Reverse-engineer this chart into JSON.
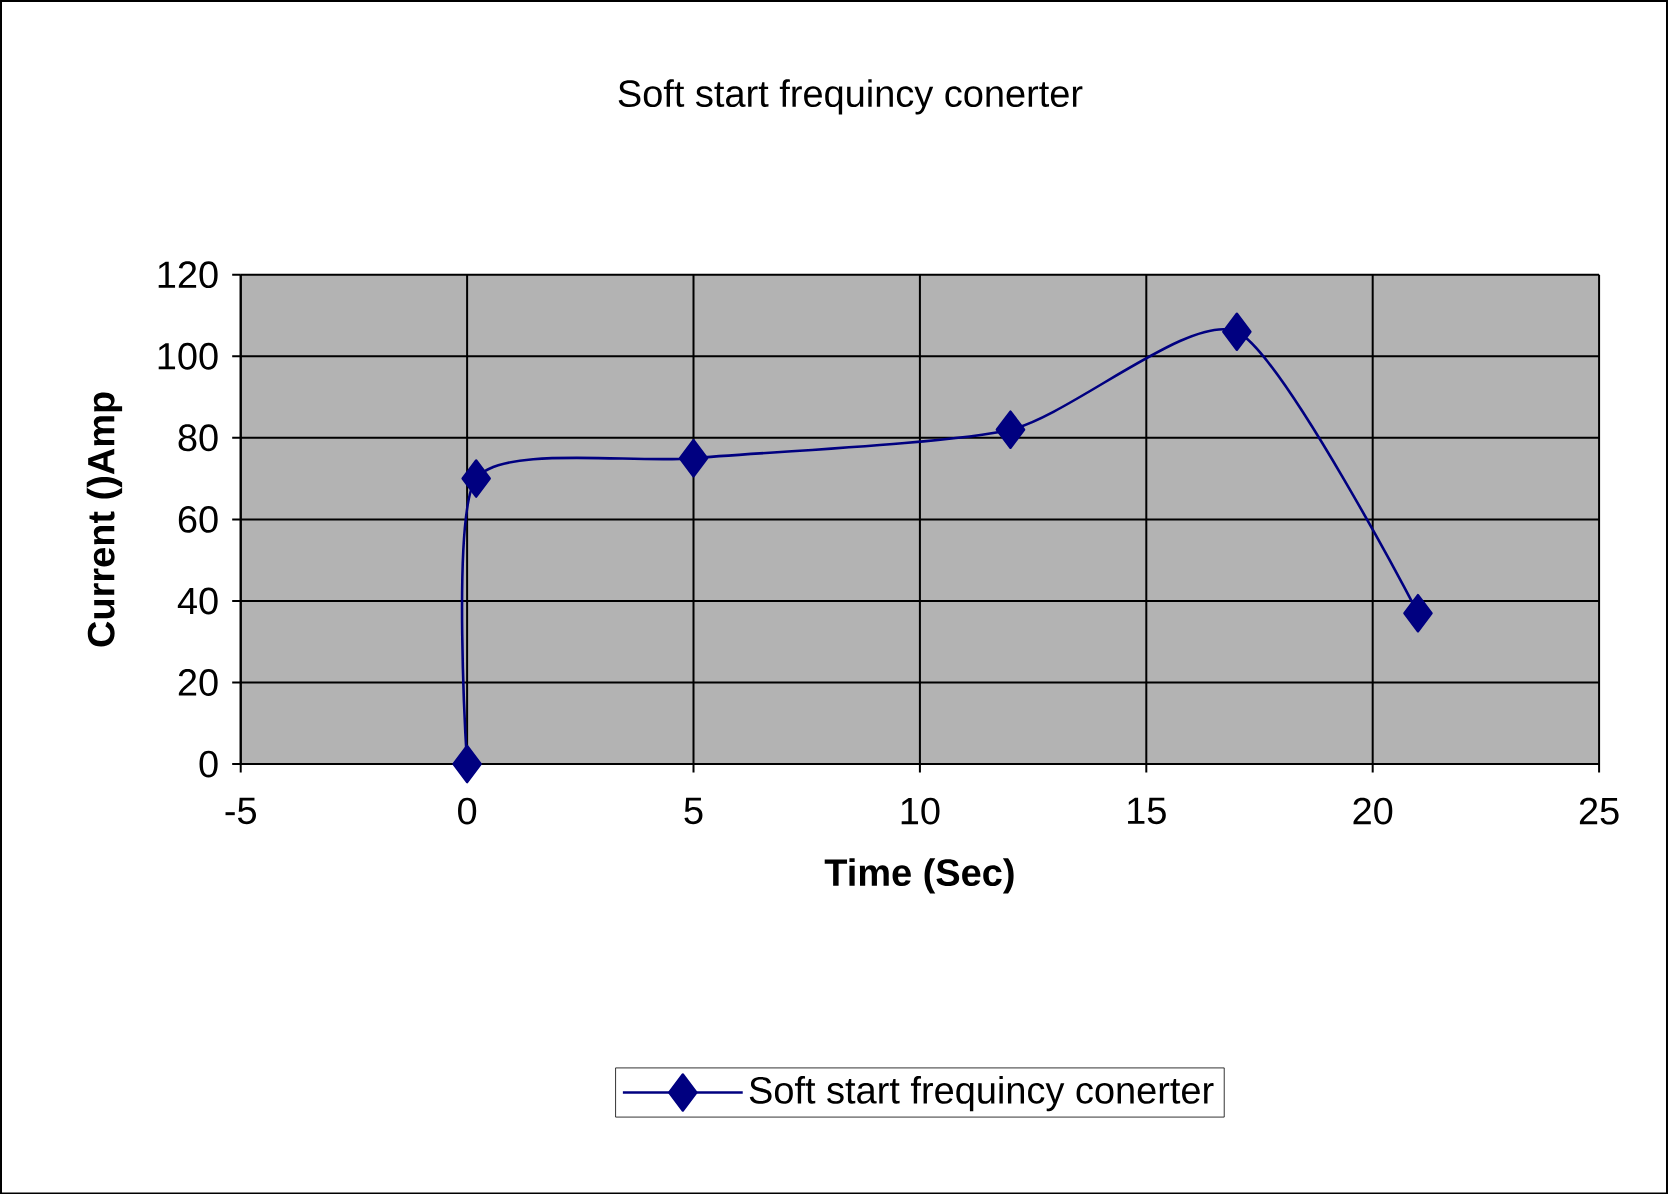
{
  "chart_data": {
    "type": "line",
    "title": "Soft start frequincy conerter",
    "xlabel": "Time (Sec)",
    "ylabel": "Current ()Amp",
    "x": [
      0,
      0.2,
      5,
      12,
      17,
      21
    ],
    "series": [
      {
        "name": "Soft start frequincy conerter",
        "color": "#000080",
        "values": [
          0,
          70,
          75,
          82,
          106,
          37
        ]
      }
    ],
    "xlim": [
      -5,
      25
    ],
    "ylim": [
      0,
      120
    ],
    "xticks": [
      -5,
      0,
      5,
      10,
      15,
      20,
      25
    ],
    "yticks": [
      0,
      20,
      40,
      60,
      80,
      100,
      120
    ],
    "grid": true,
    "legend": "bottom",
    "marker": "diamond",
    "line_style": "solid"
  }
}
